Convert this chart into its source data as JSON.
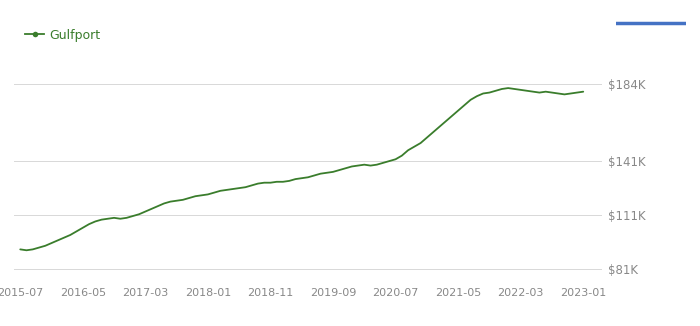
{
  "legend_label": "Gulfport",
  "line_color": "#3a7d2c",
  "background_color": "#ffffff",
  "grid_color": "#d8d8d8",
  "ytick_labels": [
    "$81K",
    "$111K",
    "$141K",
    "$184K"
  ],
  "ytick_values": [
    81000,
    111000,
    141000,
    184000
  ],
  "xtick_labels": [
    "2015-07",
    "2016-05",
    "2017-03",
    "2018-01",
    "2018-11",
    "2019-09",
    "2020-07",
    "2021-05",
    "2022-03",
    "2023-01"
  ],
  "xtick_positions": [
    0,
    10,
    20,
    30,
    40,
    50,
    60,
    70,
    80,
    90
  ],
  "ylim": [
    73000,
    196000
  ],
  "xlim": [
    -1,
    93
  ],
  "blue_line_color": "#4472c4",
  "data_x": [
    0,
    1,
    2,
    3,
    4,
    5,
    6,
    7,
    8,
    9,
    10,
    11,
    12,
    13,
    14,
    15,
    16,
    17,
    18,
    19,
    20,
    21,
    22,
    23,
    24,
    25,
    26,
    27,
    28,
    29,
    30,
    31,
    32,
    33,
    34,
    35,
    36,
    37,
    38,
    39,
    40,
    41,
    42,
    43,
    44,
    45,
    46,
    47,
    48,
    49,
    50,
    51,
    52,
    53,
    54,
    55,
    56,
    57,
    58,
    59,
    60,
    61,
    62,
    63,
    64,
    65,
    66,
    67,
    68,
    69,
    70,
    71,
    72,
    73,
    74,
    75,
    76,
    77,
    78,
    79,
    80,
    81,
    82,
    83,
    84,
    85,
    86,
    87,
    88,
    89,
    90
  ],
  "data_y": [
    92000,
    91500,
    92000,
    93000,
    94000,
    95500,
    97000,
    98500,
    100000,
    102000,
    104000,
    106000,
    107500,
    108500,
    109000,
    109500,
    109000,
    109500,
    110500,
    111500,
    113000,
    114500,
    116000,
    117500,
    118500,
    119000,
    119500,
    120500,
    121500,
    122000,
    122500,
    123500,
    124500,
    125000,
    125500,
    126000,
    126500,
    127500,
    128500,
    129000,
    129000,
    129500,
    129500,
    130000,
    131000,
    131500,
    132000,
    133000,
    134000,
    134500,
    135000,
    136000,
    137000,
    138000,
    138500,
    139000,
    138500,
    139000,
    140000,
    141000,
    142000,
    144000,
    147000,
    149000,
    151000,
    154000,
    157000,
    160000,
    163000,
    166000,
    169000,
    172000,
    175000,
    177000,
    178500,
    179000,
    180000,
    181000,
    181500,
    181000,
    180500,
    180000,
    179500,
    179000,
    179500,
    179000,
    178500,
    178000,
    178500,
    179000,
    179500
  ]
}
